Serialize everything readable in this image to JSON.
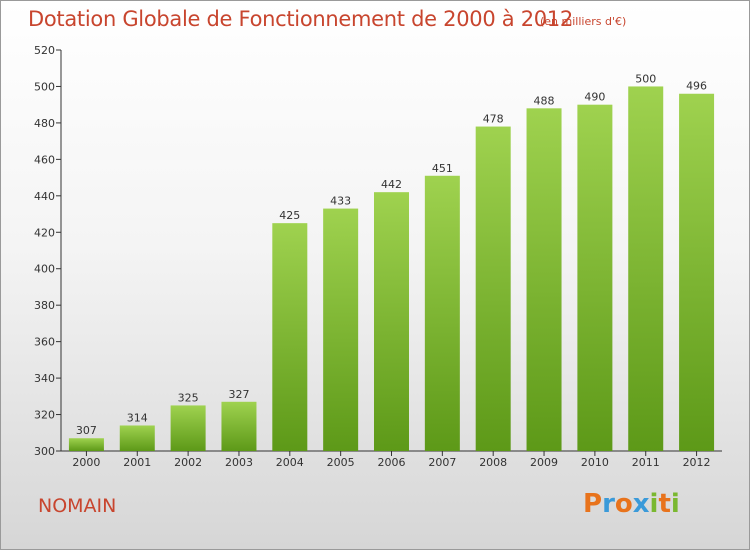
{
  "header": {
    "title": "Dotation Globale de Fonctionnement de 2000 à 2012",
    "unit": "(en milliers d'€)"
  },
  "footer": {
    "commune": "NOMAIN",
    "logo_text": "Proxiti",
    "logo_colors": [
      "#e8731c",
      "#3a9ad9",
      "#e8731c",
      "#3a9ad9",
      "#7ab830",
      "#e8731c",
      "#7ab830"
    ]
  },
  "chart_data": {
    "type": "bar",
    "title": "Dotation Globale de Fonctionnement de 2000 à 2012",
    "subtitle": "(en milliers d'€)",
    "xlabel": "",
    "ylabel": "",
    "categories": [
      "2000",
      "2001",
      "2002",
      "2003",
      "2004",
      "2005",
      "2006",
      "2007",
      "2008",
      "2009",
      "2010",
      "2011",
      "2012"
    ],
    "values": [
      307,
      314,
      325,
      327,
      425,
      433,
      442,
      451,
      478,
      488,
      490,
      500,
      496
    ],
    "ylim": [
      300,
      520
    ],
    "yticks": [
      "300",
      "320",
      "340",
      "360",
      "380",
      "400",
      "420",
      "440",
      "460",
      "480",
      "500",
      "520"
    ],
    "grid": false,
    "bar_color_top": "#9fd24f",
    "bar_color_bottom": "#5d9918",
    "axis_color": "#333333"
  }
}
